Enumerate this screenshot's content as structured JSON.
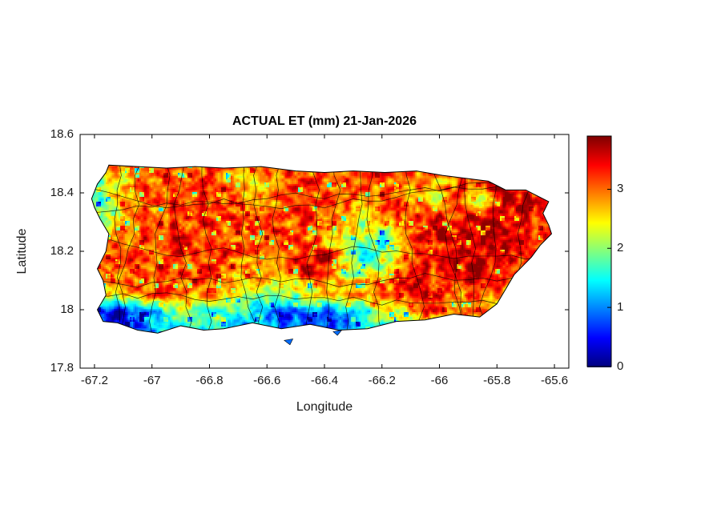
{
  "figure": {
    "background_color": "#ffffff"
  },
  "chart_data": {
    "type": "heatmap",
    "title": "ACTUAL ET (mm) 21-Jan-2026",
    "xlabel": "Longitude",
    "ylabel": "Latitude",
    "region": "Puerto Rico with municipal boundaries",
    "units": "mm",
    "xlim": [
      -67.25,
      -65.55
    ],
    "ylim": [
      17.8,
      18.6
    ],
    "xticks": [
      -67.2,
      -67,
      -66.8,
      -66.6,
      -66.4,
      -66.2,
      -66,
      -65.8,
      -65.6
    ],
    "xtick_labels": [
      "-67.2",
      "-67",
      "-66.8",
      "-66.6",
      "-66.4",
      "-66.2",
      "-66",
      "-65.8",
      "-65.6"
    ],
    "yticks": [
      17.8,
      18,
      18.2,
      18.4,
      18.6
    ],
    "ytick_labels": [
      "17.8",
      "18",
      "18.2",
      "18.4",
      "18.6"
    ],
    "colorbar": {
      "colormap": "jet",
      "vmin": 0,
      "vmax": 3.9,
      "ticks": [
        0,
        1,
        2,
        3
      ],
      "tick_labels": [
        "0",
        "1",
        "2",
        "3"
      ],
      "position": "right"
    },
    "grid": {
      "lon_start": -67.25,
      "dlon": 0.066,
      "ncols": 26,
      "lat_start": 18.5,
      "dlat": -0.0633,
      "nrows": 10,
      "values": [
        [
          2.6,
          2.3,
          2.8,
          3.0,
          3.0,
          3.1,
          3.0,
          3.2,
          3.1,
          2.8,
          3.0,
          3.1,
          3.0,
          3.2,
          3.0,
          3.1,
          3.0,
          3.0,
          3.1,
          3.2,
          3.1,
          3.2,
          3.3,
          3.2,
          3.1,
          3.0
        ],
        [
          1.9,
          1.8,
          2.6,
          3.0,
          3.2,
          3.0,
          3.3,
          3.2,
          2.6,
          2.5,
          3.0,
          3.2,
          3.3,
          3.1,
          3.2,
          3.0,
          3.1,
          3.3,
          3.0,
          2.7,
          3.2,
          3.4,
          3.5,
          3.4,
          3.2,
          3.1
        ],
        [
          1.6,
          1.8,
          2.4,
          2.9,
          3.1,
          3.2,
          3.3,
          3.0,
          3.2,
          2.6,
          3.1,
          3.3,
          3.2,
          3.0,
          3.2,
          3.1,
          3.0,
          3.2,
          2.8,
          2.5,
          3.3,
          1.5,
          3.5,
          3.6,
          3.4,
          3.2
        ],
        [
          2.0,
          2.2,
          2.4,
          3.0,
          3.2,
          3.4,
          3.2,
          3.3,
          3.1,
          3.0,
          3.2,
          3.1,
          3.3,
          3.2,
          2.7,
          2.3,
          2.8,
          3.0,
          3.4,
          3.5,
          3.3,
          3.6,
          3.7,
          3.6,
          3.4,
          3.3
        ],
        [
          2.5,
          2.8,
          3.1,
          3.0,
          3.3,
          3.4,
          3.3,
          3.4,
          3.2,
          3.1,
          3.2,
          3.3,
          3.0,
          2.7,
          2.4,
          2.0,
          1.8,
          3.0,
          3.3,
          3.5,
          3.6,
          3.5,
          3.7,
          3.5,
          3.3,
          3.2
        ],
        [
          2.8,
          3.0,
          3.3,
          3.2,
          3.1,
          3.2,
          3.3,
          3.2,
          3.1,
          3.0,
          3.1,
          3.2,
          3.4,
          3.5,
          2.3,
          1.6,
          1.9,
          2.8,
          3.2,
          3.4,
          3.5,
          3.7,
          3.6,
          3.5,
          3.2,
          3.1
        ],
        [
          2.6,
          3.0,
          3.2,
          3.1,
          3.3,
          3.4,
          3.3,
          3.2,
          2.8,
          2.7,
          2.9,
          3.1,
          3.3,
          3.1,
          2.4,
          2.1,
          2.6,
          3.1,
          3.4,
          3.3,
          3.5,
          3.6,
          3.5,
          3.3,
          3.1,
          3.0
        ],
        [
          2.0,
          2.4,
          2.6,
          2.9,
          3.1,
          3.2,
          3.0,
          2.8,
          2.4,
          2.2,
          2.0,
          1.8,
          2.2,
          2.8,
          3.0,
          3.1,
          3.2,
          3.3,
          3.4,
          3.3,
          3.2,
          3.1,
          3.0,
          2.9,
          2.8,
          2.8
        ],
        [
          1.2,
          0.8,
          0.5,
          1.0,
          1.4,
          1.8,
          2.0,
          2.1,
          1.8,
          1.6,
          1.3,
          0.9,
          1.2,
          0.7,
          1.1,
          1.5,
          2.0,
          2.5,
          3.0,
          3.2,
          3.1,
          3.0,
          2.8,
          2.7,
          2.6,
          2.6
        ],
        [
          0.8,
          0.5,
          0.3,
          0.8,
          1.2,
          1.5,
          1.6,
          1.5,
          1.4,
          1.2,
          1.0,
          0.8,
          1.0,
          0.6,
          0.9,
          1.3,
          1.8,
          2.2,
          2.5,
          2.8,
          2.8,
          2.7,
          2.6,
          2.5,
          2.5,
          2.5
        ]
      ]
    },
    "coastline": [
      [
        -67.21,
        18.38
      ],
      [
        -67.19,
        18.43
      ],
      [
        -67.16,
        18.47
      ],
      [
        -67.15,
        18.495
      ],
      [
        -67.05,
        18.49
      ],
      [
        -66.95,
        18.485
      ],
      [
        -66.85,
        18.49
      ],
      [
        -66.75,
        18.485
      ],
      [
        -66.62,
        18.49
      ],
      [
        -66.5,
        18.475
      ],
      [
        -66.4,
        18.47
      ],
      [
        -66.3,
        18.475
      ],
      [
        -66.19,
        18.47
      ],
      [
        -66.08,
        18.475
      ],
      [
        -65.99,
        18.46
      ],
      [
        -65.91,
        18.45
      ],
      [
        -65.83,
        18.44
      ],
      [
        -65.77,
        18.41
      ],
      [
        -65.7,
        18.41
      ],
      [
        -65.66,
        18.39
      ],
      [
        -65.62,
        18.37
      ],
      [
        -65.64,
        18.33
      ],
      [
        -65.62,
        18.29
      ],
      [
        -65.61,
        18.26
      ],
      [
        -65.65,
        18.22
      ],
      [
        -65.68,
        18.18
      ],
      [
        -65.74,
        18.12
      ],
      [
        -65.77,
        18.07
      ],
      [
        -65.8,
        18.02
      ],
      [
        -65.86,
        17.975
      ],
      [
        -65.95,
        17.985
      ],
      [
        -66.05,
        17.965
      ],
      [
        -66.15,
        17.96
      ],
      [
        -66.25,
        17.935
      ],
      [
        -66.35,
        17.93
      ],
      [
        -66.45,
        17.95
      ],
      [
        -66.55,
        17.935
      ],
      [
        -66.65,
        17.955
      ],
      [
        -66.75,
        17.935
      ],
      [
        -66.82,
        17.93
      ],
      [
        -66.9,
        17.945
      ],
      [
        -66.98,
        17.92
      ],
      [
        -67.05,
        17.93
      ],
      [
        -67.12,
        17.955
      ],
      [
        -67.17,
        17.96
      ],
      [
        -67.19,
        18.0
      ],
      [
        -67.16,
        18.05
      ],
      [
        -67.17,
        18.1
      ],
      [
        -67.19,
        18.14
      ],
      [
        -67.16,
        18.2
      ],
      [
        -67.15,
        18.26
      ],
      [
        -67.18,
        18.31
      ],
      [
        -67.2,
        18.35
      ]
    ],
    "islets": [
      [
        [
          -66.54,
          17.895
        ],
        [
          -66.51,
          17.9
        ],
        [
          -66.52,
          17.88
        ]
      ],
      [
        [
          -66.37,
          17.925
        ],
        [
          -66.34,
          17.93
        ],
        [
          -66.355,
          17.912
        ]
      ]
    ],
    "layout": {
      "grid_lines": false,
      "legend": false,
      "box": true,
      "noise_seed": 7,
      "boundary_lons": [
        -67.13,
        -67.05,
        -66.96,
        -66.88,
        -66.79,
        -66.71,
        -66.62,
        -66.54,
        -66.46,
        -66.37,
        -66.28,
        -66.2,
        -66.11,
        -66.03,
        -65.94,
        -65.86,
        -65.77,
        -65.69
      ],
      "boundary_lats": [
        18.4,
        18.32,
        18.23,
        18.14,
        18.04
      ]
    }
  }
}
